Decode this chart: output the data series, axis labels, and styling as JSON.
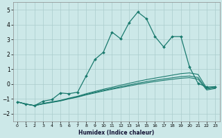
{
  "xlabel": "Humidex (Indice chaleur)",
  "ylabel": "",
  "bg_color": "#cce8e8",
  "grid_color": "#aacccc",
  "line_color": "#1a7a6e",
  "xlim": [
    -0.5,
    23.5
  ],
  "ylim": [
    -2.5,
    5.5
  ],
  "xticks": [
    0,
    1,
    2,
    3,
    4,
    5,
    6,
    7,
    8,
    9,
    10,
    11,
    12,
    13,
    14,
    15,
    16,
    17,
    18,
    19,
    20,
    21,
    22,
    23
  ],
  "yticks": [
    -2,
    -1,
    0,
    1,
    2,
    3,
    4,
    5
  ],
  "series": {
    "main": {
      "x": [
        0,
        1,
        2,
        3,
        4,
        5,
        6,
        7,
        8,
        9,
        10,
        11,
        12,
        13,
        14,
        15,
        16,
        17,
        18,
        19,
        20,
        21,
        22,
        23
      ],
      "y": [
        -1.2,
        -1.35,
        -1.45,
        -1.15,
        -1.05,
        -0.6,
        -0.65,
        -0.55,
        0.55,
        1.65,
        2.15,
        3.5,
        3.05,
        4.15,
        4.85,
        4.4,
        3.2,
        2.5,
        3.2,
        3.2,
        1.15,
        0.05,
        -0.2,
        -0.18
      ]
    },
    "line2": {
      "x": [
        0,
        1,
        2,
        3,
        4,
        5,
        6,
        7,
        8,
        9,
        10,
        11,
        12,
        13,
        14,
        15,
        16,
        17,
        18,
        19,
        20,
        21,
        22,
        23
      ],
      "y": [
        -1.2,
        -1.35,
        -1.45,
        -1.3,
        -1.2,
        -1.1,
        -0.95,
        -0.82,
        -0.65,
        -0.5,
        -0.35,
        -0.22,
        -0.08,
        0.05,
        0.18,
        0.3,
        0.4,
        0.5,
        0.6,
        0.7,
        0.75,
        0.65,
        -0.28,
        -0.18
      ]
    },
    "line3": {
      "x": [
        0,
        1,
        2,
        3,
        4,
        5,
        6,
        7,
        8,
        9,
        10,
        11,
        12,
        13,
        14,
        15,
        16,
        17,
        18,
        19,
        20,
        21,
        22,
        23
      ],
      "y": [
        -1.2,
        -1.35,
        -1.45,
        -1.32,
        -1.22,
        -1.12,
        -0.98,
        -0.86,
        -0.7,
        -0.56,
        -0.42,
        -0.3,
        -0.18,
        -0.06,
        0.06,
        0.16,
        0.26,
        0.34,
        0.42,
        0.5,
        0.54,
        0.44,
        -0.34,
        -0.24
      ]
    },
    "line4": {
      "x": [
        0,
        1,
        2,
        3,
        4,
        5,
        6,
        7,
        8,
        9,
        10,
        11,
        12,
        13,
        14,
        15,
        16,
        17,
        18,
        19,
        20,
        21,
        22,
        23
      ],
      "y": [
        -1.2,
        -1.35,
        -1.45,
        -1.34,
        -1.24,
        -1.14,
        -1.0,
        -0.88,
        -0.73,
        -0.6,
        -0.47,
        -0.35,
        -0.24,
        -0.13,
        -0.02,
        0.08,
        0.17,
        0.25,
        0.32,
        0.39,
        0.43,
        0.33,
        -0.4,
        -0.3
      ]
    }
  }
}
